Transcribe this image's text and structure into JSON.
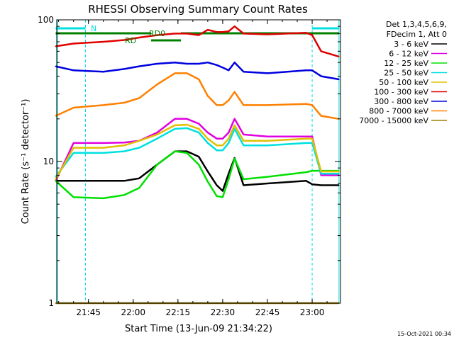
{
  "chart_data": {
    "type": "line",
    "title": "RHESSI Observing Summary Count Rates",
    "xlabel": "Start Time (13-Jun-09 21:34:22)",
    "ylabel": "Count Rate (s⁻¹ detector⁻¹)",
    "yscale": "log",
    "ylim": [
      1,
      100
    ],
    "xlim": [
      "21:34:22",
      "23:09:30"
    ],
    "x_ticks": [
      "21:45",
      "22:00",
      "22:15",
      "22:30",
      "22:45",
      "23:00"
    ],
    "y_ticks": [
      "1",
      "10",
      "100"
    ],
    "legend": {
      "position": "right",
      "header": [
        "Det 1,3,4,5,6,9,",
        "FDecim 1, Att 0"
      ]
    },
    "series": [
      {
        "name": "3 - 6 keV",
        "color": "#000000",
        "x": [
          "21:34",
          "21:40",
          "21:50",
          "21:57",
          "22:02",
          "22:08",
          "22:14",
          "22:18",
          "22:22",
          "22:25",
          "22:28",
          "22:30",
          "22:32",
          "22:34",
          "22:37",
          "22:45",
          "22:58",
          "23:00",
          "23:03",
          "23:09"
        ],
        "y": [
          7.3,
          7.3,
          7.3,
          7.3,
          7.6,
          9.5,
          11.8,
          11.8,
          10.8,
          8.5,
          6.8,
          6.2,
          8.2,
          10.6,
          6.8,
          7.0,
          7.3,
          6.9,
          6.8,
          6.8
        ]
      },
      {
        "name": "6 - 12 keV",
        "color": "#e000e0",
        "x": [
          "21:34",
          "21:40",
          "21:50",
          "21:57",
          "22:02",
          "22:08",
          "22:14",
          "22:18",
          "22:22",
          "22:25",
          "22:28",
          "22:30",
          "22:32",
          "22:34",
          "22:37",
          "22:45",
          "22:58",
          "23:00",
          "23:03",
          "23:09"
        ],
        "y": [
          7.3,
          13.5,
          13.5,
          13.6,
          14,
          16,
          20,
          20,
          18.5,
          16,
          14.5,
          14.5,
          16,
          20,
          15.5,
          15,
          15,
          15,
          8,
          8
        ]
      },
      {
        "name": "12 - 25 keV",
        "color": "#00e000",
        "x": [
          "21:34",
          "21:40",
          "21:50",
          "21:57",
          "22:02",
          "22:08",
          "22:14",
          "22:18",
          "22:22",
          "22:25",
          "22:28",
          "22:30",
          "22:32",
          "22:34",
          "22:37",
          "22:45",
          "22:58",
          "23:00",
          "23:03",
          "23:09"
        ],
        "y": [
          7.3,
          5.6,
          5.5,
          5.8,
          6.5,
          9.5,
          11.8,
          11.5,
          9.5,
          7.2,
          5.7,
          5.6,
          7.5,
          10.5,
          7.5,
          7.8,
          8.4,
          8.6,
          8.6,
          8.6
        ]
      },
      {
        "name": "25 - 50 keV",
        "color": "#00e0e0",
        "x": [
          "21:34",
          "21:40",
          "21:50",
          "21:57",
          "22:02",
          "22:08",
          "22:14",
          "22:18",
          "22:22",
          "22:25",
          "22:28",
          "22:30",
          "22:32",
          "22:34",
          "22:37",
          "22:45",
          "22:58",
          "23:00",
          "23:03",
          "23:09"
        ],
        "y": [
          7.8,
          11.5,
          11.5,
          11.8,
          12.5,
          14.5,
          17,
          17.2,
          16,
          13.5,
          12,
          12,
          13.5,
          17,
          13,
          13,
          13.5,
          13.5,
          8.2,
          8.2
        ]
      },
      {
        "name": "50 - 100 keV",
        "color": "#e0c000",
        "x": [
          "21:34",
          "21:40",
          "21:50",
          "21:57",
          "22:02",
          "22:08",
          "22:14",
          "22:18",
          "22:22",
          "22:25",
          "22:28",
          "22:30",
          "22:32",
          "22:34",
          "22:37",
          "22:45",
          "22:58",
          "23:00",
          "23:03",
          "23:09"
        ],
        "y": [
          7.5,
          12.5,
          12.5,
          13,
          14,
          15.5,
          18,
          18.2,
          17,
          14.5,
          13,
          13,
          14.5,
          18,
          14,
          14,
          14.5,
          14.5,
          8.5,
          8.5
        ]
      },
      {
        "name": "100 - 300 keV",
        "color": "#e00000",
        "x": [
          "21:34",
          "21:40",
          "21:50",
          "21:57",
          "22:02",
          "22:08",
          "22:14",
          "22:18",
          "22:22",
          "22:25",
          "22:28",
          "22:30",
          "22:32",
          "22:34",
          "22:37",
          "22:45",
          "22:58",
          "23:00",
          "23:03",
          "23:09"
        ],
        "y": [
          65,
          68,
          70,
          72,
          75,
          78,
          80,
          80,
          78,
          85,
          82,
          82,
          83,
          90,
          80,
          79,
          81,
          78,
          60,
          55
        ]
      },
      {
        "name": "300 - 800 keV",
        "color": "#0000e0",
        "x": [
          "21:34",
          "21:40",
          "21:50",
          "21:57",
          "22:02",
          "22:08",
          "22:14",
          "22:18",
          "22:22",
          "22:25",
          "22:28",
          "22:30",
          "22:32",
          "22:34",
          "22:37",
          "22:45",
          "22:58",
          "23:00",
          "23:03",
          "23:09"
        ],
        "y": [
          47,
          44,
          43,
          45,
          47,
          49,
          50,
          49,
          49,
          50,
          48,
          46,
          44,
          50,
          43,
          42,
          44,
          44,
          40,
          38
        ]
      },
      {
        "name": "800 - 7000 keV",
        "color": "#ff8000",
        "x": [
          "21:34",
          "21:40",
          "21:50",
          "21:57",
          "22:02",
          "22:08",
          "22:14",
          "22:18",
          "22:22",
          "22:25",
          "22:28",
          "22:30",
          "22:32",
          "22:34",
          "22:37",
          "22:45",
          "22:58",
          "23:00",
          "23:03",
          "23:09"
        ],
        "y": [
          21,
          24,
          25,
          26,
          28,
          35,
          42,
          42,
          38,
          29,
          25,
          25,
          27,
          31,
          25,
          25,
          25.5,
          25,
          21,
          20
        ]
      },
      {
        "name": "7000 - 15000 keV",
        "color": "#a08000",
        "x": [
          "21:34",
          "21:40",
          "21:50",
          "21:57",
          "22:02",
          "22:08",
          "22:14",
          "22:18",
          "22:22",
          "22:25",
          "22:28",
          "22:30",
          "22:32",
          "22:34",
          "22:37",
          "22:45",
          "22:58",
          "23:00",
          "23:03",
          "23:09"
        ],
        "y": [
          1,
          1,
          1,
          1,
          1,
          1,
          1,
          1,
          1,
          1,
          1,
          1,
          1,
          1,
          1,
          1,
          1,
          1,
          1,
          1
        ]
      }
    ],
    "annotations": [
      {
        "text": "N",
        "color": "#00e0e0"
      },
      {
        "text": "RD0",
        "color": "#008000"
      },
      {
        "text": "RD",
        "color": "#008000"
      }
    ],
    "flags": [
      {
        "type": "N",
        "color": "#00e0e0",
        "start": "21:34",
        "end": "21:44"
      },
      {
        "type": "N",
        "color": "#00e0e0",
        "start": "23:00",
        "end": "23:09"
      },
      {
        "type": "RD",
        "color": "#008000",
        "start": "21:34",
        "end": "22:06"
      },
      {
        "type": "RD0",
        "color": "#008000",
        "start": "22:06",
        "end": "22:16"
      },
      {
        "type": "RD",
        "color": "#008000",
        "start": "22:16",
        "end": "23:09"
      }
    ],
    "timestamp": "15-Oct-2021 00:34"
  }
}
